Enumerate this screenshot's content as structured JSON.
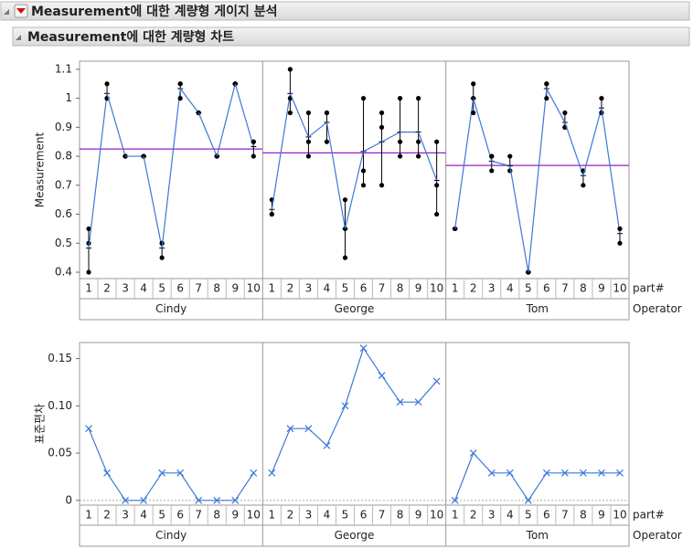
{
  "outline": {
    "title": "Measurement에 대한 계량형 게이지 분석",
    "subtitle": "Measurement에 대한 계량형 차트"
  },
  "chart_data": [
    {
      "type": "variability",
      "ylabel": "Measurement",
      "x_label": "part#",
      "group_label": "Operator",
      "categories": [
        "1",
        "2",
        "3",
        "4",
        "5",
        "6",
        "7",
        "8",
        "9",
        "10"
      ],
      "ylim": [
        0.378,
        1.128
      ],
      "yticks": [
        0.4,
        0.5,
        0.6,
        0.7,
        0.8,
        0.9,
        1,
        1.1
      ],
      "line_color": "#3c78d8",
      "mean_color": "#9a1ec8",
      "point_color": "#000000",
      "series": [
        {
          "name": "Cindy",
          "values": [
            [
              0.4,
              0.5,
              0.55
            ],
            [
              1.0,
              1.0,
              1.05
            ],
            [
              0.8,
              0.8,
              0.8
            ],
            [
              0.8,
              0.8,
              0.8
            ],
            [
              0.45,
              0.5,
              0.5
            ],
            [
              1.0,
              1.05,
              1.05
            ],
            [
              0.95,
              0.95,
              0.95
            ],
            [
              0.8,
              0.8,
              0.8
            ],
            [
              1.05,
              1.05,
              1.05
            ],
            [
              0.8,
              0.85,
              0.85
            ]
          ]
        },
        {
          "name": "George",
          "values": [
            [
              0.6,
              0.6,
              0.65
            ],
            [
              0.95,
              1.0,
              1.1
            ],
            [
              0.8,
              0.85,
              0.95
            ],
            [
              0.85,
              0.95,
              0.95
            ],
            [
              0.45,
              0.55,
              0.65
            ],
            [
              0.7,
              0.75,
              1.0
            ],
            [
              0.7,
              0.9,
              0.95
            ],
            [
              0.8,
              0.85,
              1.0
            ],
            [
              0.8,
              0.85,
              1.0
            ],
            [
              0.6,
              0.7,
              0.85
            ]
          ]
        },
        {
          "name": "Tom",
          "values": [
            [
              0.55,
              0.55,
              0.55
            ],
            [
              0.95,
              1.0,
              1.05
            ],
            [
              0.75,
              0.8,
              0.8
            ],
            [
              0.75,
              0.75,
              0.8
            ],
            [
              0.4,
              0.4,
              0.4
            ],
            [
              1.0,
              1.05,
              1.05
            ],
            [
              0.9,
              0.9,
              0.95
            ],
            [
              0.7,
              0.75,
              0.75
            ],
            [
              0.95,
              0.95,
              1.0
            ],
            [
              0.5,
              0.55,
              0.55
            ]
          ]
        }
      ]
    },
    {
      "type": "line",
      "ylabel": "표준편차",
      "x_label": "part#",
      "group_label": "Operator",
      "categories": [
        "1",
        "2",
        "3",
        "4",
        "5",
        "6",
        "7",
        "8",
        "9",
        "10"
      ],
      "ylim": [
        -0.005,
        0.167
      ],
      "yticks": [
        0,
        0.05,
        {
          "value": 0.1,
          "label": "0.10"
        },
        0.15
      ],
      "line_color": "#3c78d8",
      "reference_line": 0,
      "series": [
        {
          "name": "Cindy",
          "values": [
            0.076,
            0.029,
            0,
            0,
            0.029,
            0.029,
            0,
            0,
            0,
            0.029
          ]
        },
        {
          "name": "George",
          "values": [
            0.029,
            0.076,
            0.076,
            0.058,
            0.1,
            0.161,
            0.132,
            0.104,
            0.104,
            0.126
          ]
        },
        {
          "name": "Tom",
          "values": [
            0,
            0.05,
            0.029,
            0.029,
            0,
            0.029,
            0.029,
            0.029,
            0.029,
            0.029
          ]
        }
      ]
    }
  ]
}
